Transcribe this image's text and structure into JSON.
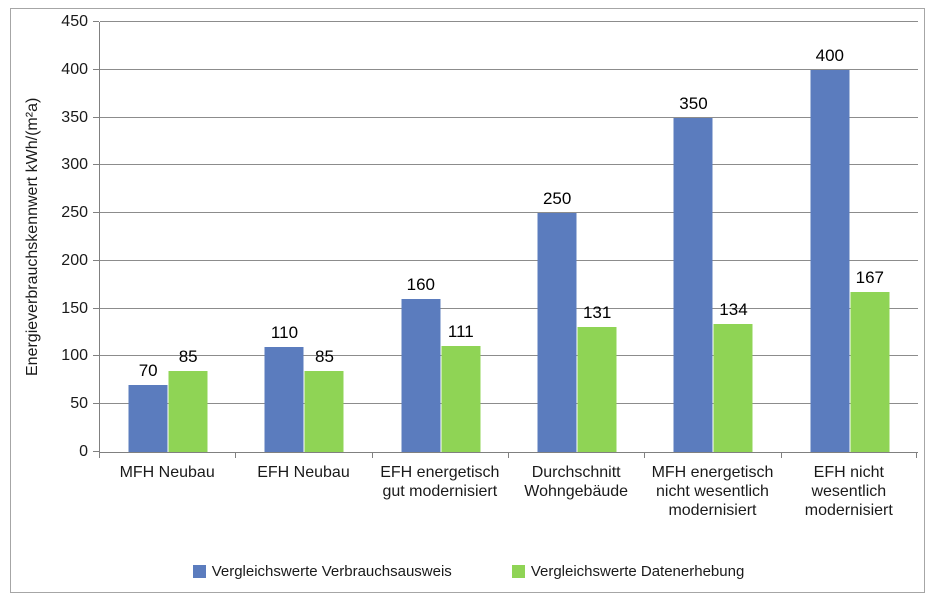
{
  "chart_data": {
    "type": "bar",
    "title": "",
    "xlabel": "",
    "ylabel": "Energieverbrauchskennwert kWh/(m²a)",
    "ylim": [
      0,
      450
    ],
    "yticks": [
      0,
      50,
      100,
      150,
      200,
      250,
      300,
      350,
      400,
      450
    ],
    "grid": true,
    "legend_position": "bottom",
    "categories": [
      "MFH Neubau",
      "EFH Neubau",
      "EFH energetisch gut modernisiert",
      "Durchschnitt Wohngebäude",
      "MFH energetisch nicht wesentlich modernisiert",
      "EFH nicht wesentlich modernisiert"
    ],
    "series": [
      {
        "name": "Vergleichswerte Verbrauchsausweis",
        "color": "#5b7cbe",
        "values": [
          70,
          110,
          160,
          250,
          350,
          400
        ]
      },
      {
        "name": "Vergleichswerte Datenerhebung",
        "color": "#8fd455",
        "values": [
          85,
          85,
          111,
          131,
          134,
          167
        ]
      }
    ]
  },
  "styling": {
    "gridline_color": "#8c8c8c",
    "axis_color": "#808080",
    "frame_border_color": "#a6a6a6",
    "background_color": "#ffffff",
    "text_color": "#1a1a1a"
  }
}
